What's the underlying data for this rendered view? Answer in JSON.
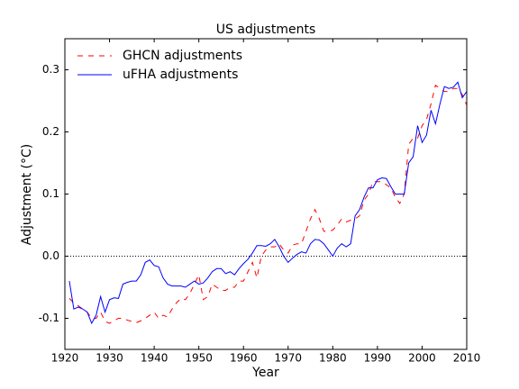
{
  "chart_data": {
    "type": "line",
    "title": "US adjustments",
    "xlabel": "Year",
    "ylabel": "Adjustment (°C)",
    "x": [
      1921,
      1922,
      1923,
      1924,
      1925,
      1926,
      1927,
      1928,
      1929,
      1930,
      1931,
      1932,
      1933,
      1934,
      1935,
      1936,
      1937,
      1938,
      1939,
      1940,
      1941,
      1942,
      1943,
      1944,
      1945,
      1946,
      1947,
      1948,
      1949,
      1950,
      1951,
      1952,
      1953,
      1954,
      1955,
      1956,
      1957,
      1958,
      1959,
      1960,
      1961,
      1962,
      1963,
      1964,
      1965,
      1966,
      1967,
      1968,
      1969,
      1970,
      1971,
      1972,
      1973,
      1974,
      1975,
      1976,
      1977,
      1978,
      1979,
      1980,
      1981,
      1982,
      1983,
      1984,
      1985,
      1986,
      1987,
      1988,
      1989,
      1990,
      1991,
      1992,
      1993,
      1994,
      1995,
      1996,
      1997,
      1998,
      1999,
      2000,
      2001,
      2002,
      2003,
      2004,
      2005,
      2006,
      2007,
      2008,
      2009,
      2010
    ],
    "series": [
      {
        "name": "GHCN adjustments",
        "color": "#ff0000",
        "dashed": true,
        "values": [
          -0.068,
          -0.075,
          -0.08,
          -0.085,
          -0.09,
          -0.1,
          -0.1,
          -0.09,
          -0.105,
          -0.108,
          -0.104,
          -0.1,
          -0.1,
          -0.103,
          -0.105,
          -0.107,
          -0.104,
          -0.1,
          -0.095,
          -0.09,
          -0.1,
          -0.095,
          -0.098,
          -0.085,
          -0.075,
          -0.068,
          -0.07,
          -0.06,
          -0.045,
          -0.03,
          -0.07,
          -0.065,
          -0.045,
          -0.05,
          -0.055,
          -0.055,
          -0.05,
          -0.05,
          -0.04,
          -0.04,
          -0.025,
          -0.01,
          -0.035,
          0.0,
          0.01,
          0.015,
          0.015,
          0.02,
          0.01,
          0.005,
          0.018,
          0.02,
          0.02,
          0.04,
          0.06,
          0.075,
          0.06,
          0.04,
          0.04,
          0.042,
          0.05,
          0.06,
          0.055,
          0.058,
          0.06,
          0.065,
          0.09,
          0.1,
          0.12,
          0.12,
          0.12,
          0.115,
          0.11,
          0.095,
          0.085,
          0.1,
          0.18,
          0.19,
          0.19,
          0.21,
          0.22,
          0.245,
          0.275,
          0.27,
          0.265,
          0.265,
          0.27,
          0.27,
          0.26,
          0.243
        ]
      },
      {
        "name": "uFHA adjustments",
        "color": "#0000ff",
        "dashed": false,
        "values": [
          -0.04,
          -0.085,
          -0.082,
          -0.085,
          -0.09,
          -0.108,
          -0.095,
          -0.065,
          -0.09,
          -0.07,
          -0.067,
          -0.068,
          -0.045,
          -0.042,
          -0.04,
          -0.04,
          -0.03,
          -0.01,
          -0.006,
          -0.015,
          -0.017,
          -0.035,
          -0.045,
          -0.048,
          -0.048,
          -0.048,
          -0.05,
          -0.045,
          -0.04,
          -0.045,
          -0.043,
          -0.035,
          -0.025,
          -0.02,
          -0.02,
          -0.028,
          -0.025,
          -0.03,
          -0.02,
          -0.012,
          -0.005,
          0.005,
          0.017,
          0.017,
          0.016,
          0.02,
          0.027,
          0.015,
          0.0,
          -0.01,
          -0.003,
          0.003,
          0.007,
          0.005,
          0.02,
          0.027,
          0.026,
          0.02,
          0.01,
          0.0,
          0.013,
          0.02,
          0.015,
          0.02,
          0.065,
          0.075,
          0.095,
          0.11,
          0.11,
          0.123,
          0.126,
          0.125,
          0.112,
          0.1,
          0.1,
          0.1,
          0.15,
          0.16,
          0.21,
          0.183,
          0.195,
          0.235,
          0.213,
          0.245,
          0.273,
          0.27,
          0.272,
          0.28,
          0.255,
          0.265
        ]
      }
    ],
    "xlim": [
      1920,
      2010
    ],
    "xticks": [
      1920,
      1930,
      1940,
      1950,
      1960,
      1970,
      1980,
      1990,
      2000,
      2010
    ],
    "ylim": [
      -0.15,
      0.35
    ],
    "yticks": [
      -0.1,
      {
        "value": 0,
        "label": "0.0"
      },
      0.1,
      0.2,
      0.3
    ],
    "reference_line": 0,
    "legend": "upper left",
    "grid": false
  }
}
